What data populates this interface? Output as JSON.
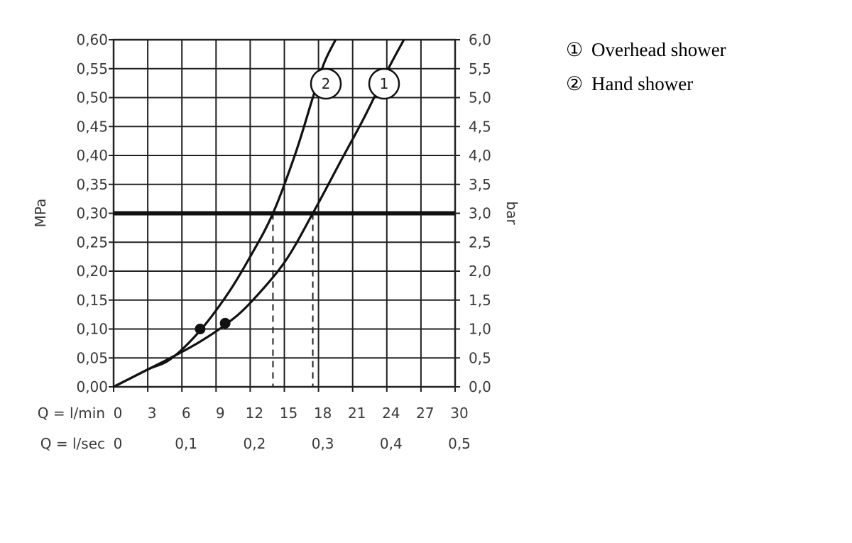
{
  "chart_data": {
    "type": "line",
    "y_left": {
      "label": "MPa",
      "ticks": [
        "0,00",
        "0,05",
        "0,10",
        "0,15",
        "0,20",
        "0,25",
        "0,30",
        "0,35",
        "0,40",
        "0,45",
        "0,50",
        "0,55",
        "0,60"
      ],
      "range": [
        0,
        0.6
      ]
    },
    "y_right": {
      "label": "bar",
      "ticks": [
        "0,0",
        "0,5",
        "1,0",
        "1,5",
        "2,0",
        "2,5",
        "3,0",
        "3,5",
        "4,0",
        "4,5",
        "5,0",
        "5,5",
        "6,0"
      ],
      "range": [
        0,
        6
      ]
    },
    "x_primary": {
      "label": "Q = l/min",
      "ticks": [
        "0",
        "3",
        "6",
        "9",
        "12",
        "15",
        "18",
        "21",
        "24",
        "27",
        "30"
      ],
      "range": [
        0,
        30
      ]
    },
    "x_secondary": {
      "label": "Q = l/sec",
      "ticks": [
        "0",
        "0,1",
        "0,2",
        "0,3",
        "0,4",
        "0,5"
      ]
    },
    "grid": true,
    "reference_line": {
      "y": 0.3
    },
    "series": [
      {
        "marker": "1",
        "name": "Overhead shower",
        "x": [
          0,
          3,
          5,
          7.5,
          10,
          12,
          15,
          17.5,
          20,
          22,
          24,
          25.5
        ],
        "y": [
          0,
          0.03,
          0.05,
          0.077,
          0.11,
          0.145,
          0.215,
          0.3,
          0.392,
          0.465,
          0.545,
          0.6
        ],
        "point": {
          "x": 9.8,
          "y": 0.11
        },
        "flow_at_reference": 17.5
      },
      {
        "marker": "2",
        "name": "Hand shower",
        "x": [
          0,
          3,
          5,
          7.5,
          10,
          12,
          14,
          16,
          17.5,
          18.5,
          19.5
        ],
        "y": [
          0,
          0.03,
          0.048,
          0.095,
          0.16,
          0.225,
          0.3,
          0.405,
          0.5,
          0.56,
          0.6
        ],
        "point": {
          "x": 7.6,
          "y": 0.1
        },
        "flow_at_reference": 14
      }
    ]
  },
  "legend": [
    {
      "symbol": "①",
      "label": "Overhead shower"
    },
    {
      "symbol": "②",
      "label": "Hand shower"
    }
  ]
}
